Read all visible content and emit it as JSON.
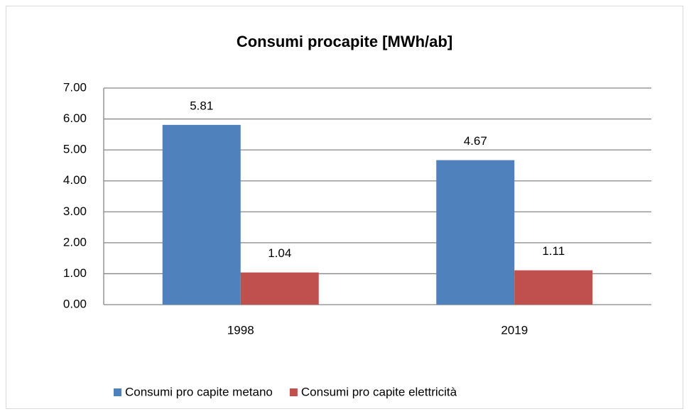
{
  "chart_data": {
    "type": "bar",
    "title": "Consumi procapite [MWh/ab]",
    "categories": [
      "1998",
      "2019"
    ],
    "series": [
      {
        "name": "Consumi pro capite metano",
        "color": "#4f81bd",
        "values": [
          5.81,
          4.67
        ]
      },
      {
        "name": "Consumi pro capite elettricità",
        "color": "#c0504d",
        "values": [
          1.04,
          1.11
        ]
      }
    ],
    "ylim": [
      0,
      7
    ],
    "yticks": [
      {
        "value": 0,
        "label": "0.00"
      },
      {
        "value": 1,
        "label": "1.00"
      },
      {
        "value": 2,
        "label": "2.00"
      },
      {
        "value": 3,
        "label": "3.00"
      },
      {
        "value": 4,
        "label": "4.00"
      },
      {
        "value": 5,
        "label": "5.00"
      },
      {
        "value": 6,
        "label": "6.00"
      },
      {
        "value": 7,
        "label": "7.00"
      }
    ],
    "grid": true,
    "legend": "bottom"
  }
}
